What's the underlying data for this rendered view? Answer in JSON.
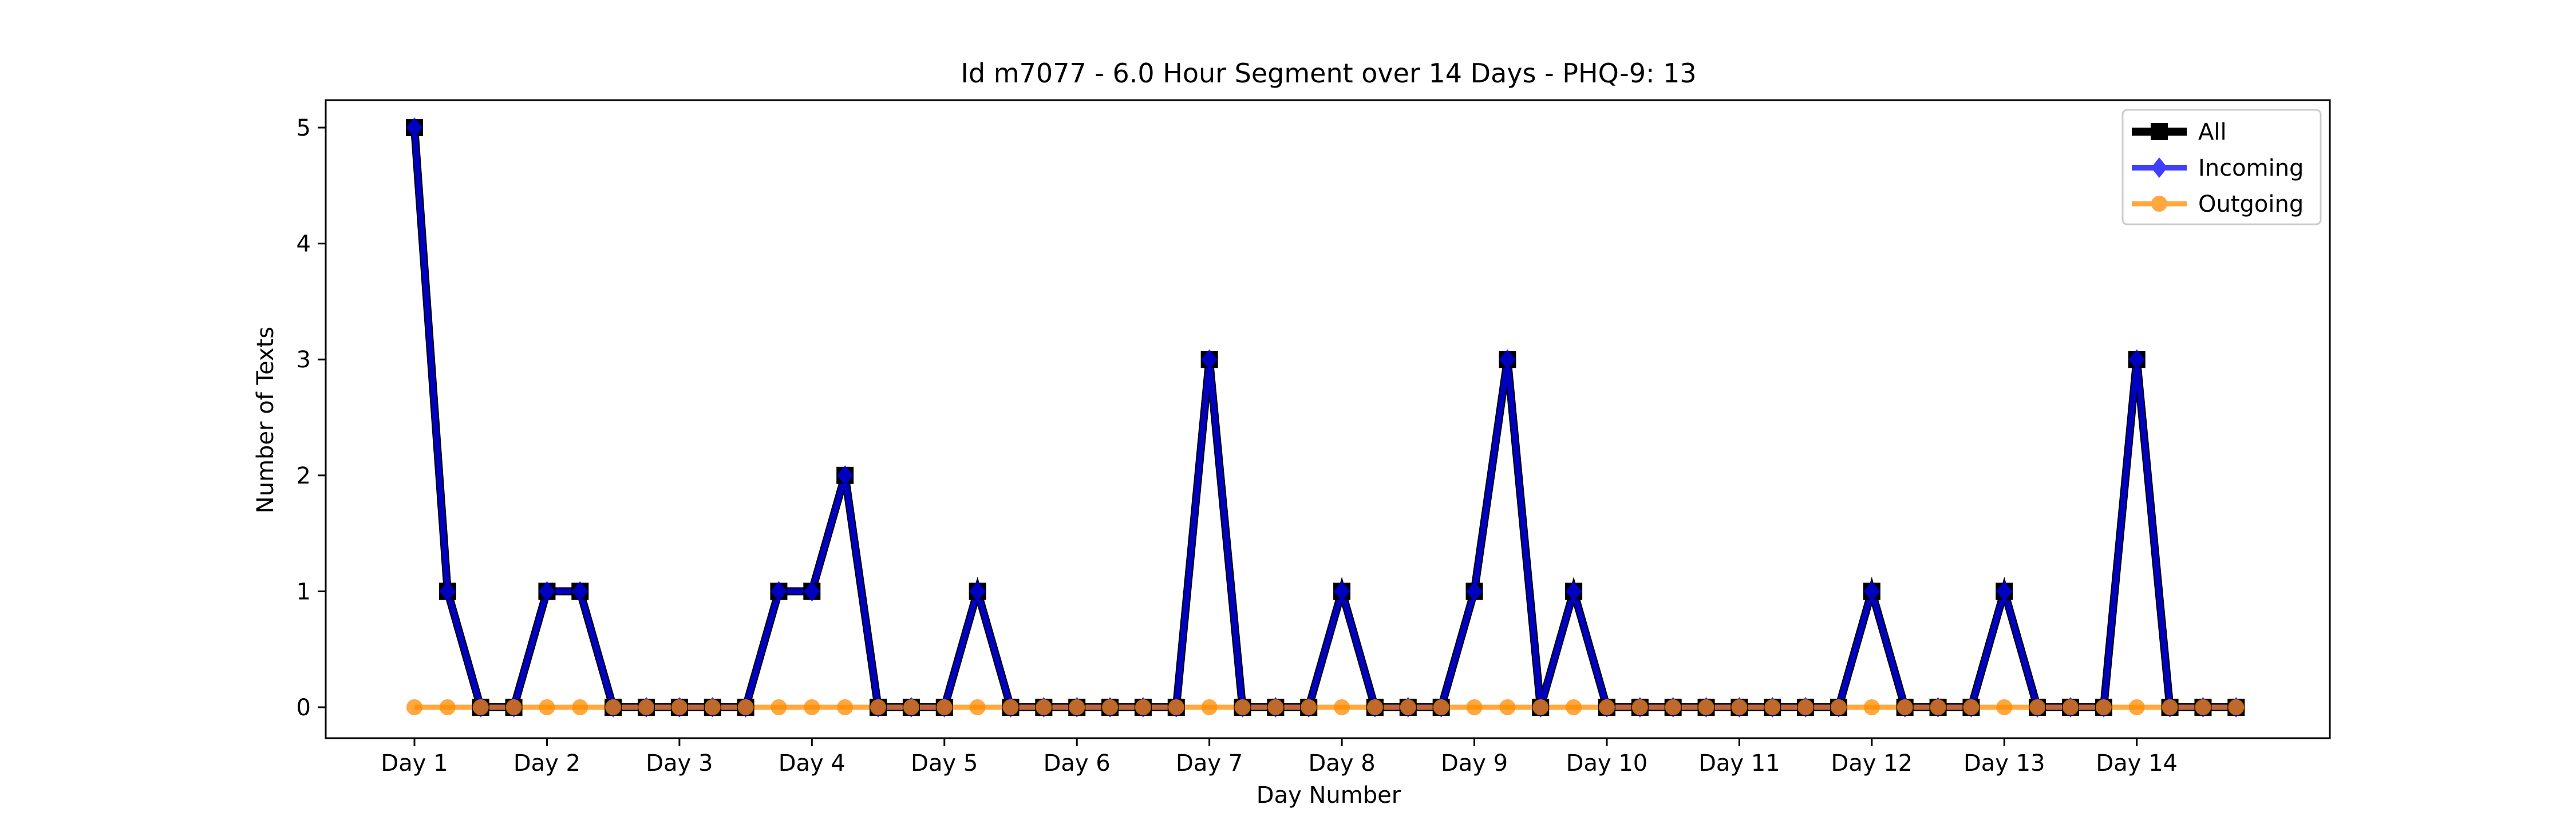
{
  "chart_data": {
    "type": "line",
    "title": "Id m7077 - 6.0 Hour Segment over 14 Days - PHQ-9: 13",
    "xlabel": "Day Number",
    "ylabel": "Number of Texts",
    "xtick_labels": [
      "Day 1",
      "Day 2",
      "Day 3",
      "Day 4",
      "Day 5",
      "Day 6",
      "Day 7",
      "Day 8",
      "Day 9",
      "Day 10",
      "Day 11",
      "Day 12",
      "Day 13",
      "Day 14"
    ],
    "ytick_labels": [
      "0",
      "1",
      "2",
      "3",
      "4",
      "5"
    ],
    "ylim": [
      -0.25,
      5.25
    ],
    "segments_per_day": 4,
    "grid": false,
    "legend_position": "top-right",
    "series": [
      {
        "name": "All",
        "color": "#000000",
        "marker": "square",
        "values": [
          5,
          1,
          0,
          0,
          1,
          1,
          0,
          0,
          0,
          0,
          0,
          1,
          1,
          2,
          0,
          0,
          0,
          1,
          0,
          0,
          0,
          0,
          0,
          0,
          3,
          0,
          0,
          0,
          1,
          0,
          0,
          0,
          1,
          3,
          0,
          1,
          0,
          0,
          0,
          0,
          0,
          0,
          0,
          0,
          1,
          0,
          0,
          0,
          1,
          0,
          0,
          0,
          3,
          0,
          0,
          0
        ]
      },
      {
        "name": "Incoming",
        "color": "#0000ff",
        "marker": "diamond",
        "values": [
          5,
          1,
          0,
          0,
          1,
          1,
          0,
          0,
          0,
          0,
          0,
          1,
          1,
          2,
          0,
          0,
          0,
          1,
          0,
          0,
          0,
          0,
          0,
          0,
          3,
          0,
          0,
          0,
          1,
          0,
          0,
          0,
          1,
          3,
          0,
          1,
          0,
          0,
          0,
          0,
          0,
          0,
          0,
          0,
          1,
          0,
          0,
          0,
          1,
          0,
          0,
          0,
          3,
          0,
          0,
          0
        ]
      },
      {
        "name": "Outgoing",
        "color": "#ff8c00",
        "marker": "circle",
        "values": [
          0,
          0,
          0,
          0,
          0,
          0,
          0,
          0,
          0,
          0,
          0,
          0,
          0,
          0,
          0,
          0,
          0,
          0,
          0,
          0,
          0,
          0,
          0,
          0,
          0,
          0,
          0,
          0,
          0,
          0,
          0,
          0,
          0,
          0,
          0,
          0,
          0,
          0,
          0,
          0,
          0,
          0,
          0,
          0,
          0,
          0,
          0,
          0,
          0,
          0,
          0,
          0,
          0,
          0,
          0,
          0
        ]
      }
    ]
  }
}
